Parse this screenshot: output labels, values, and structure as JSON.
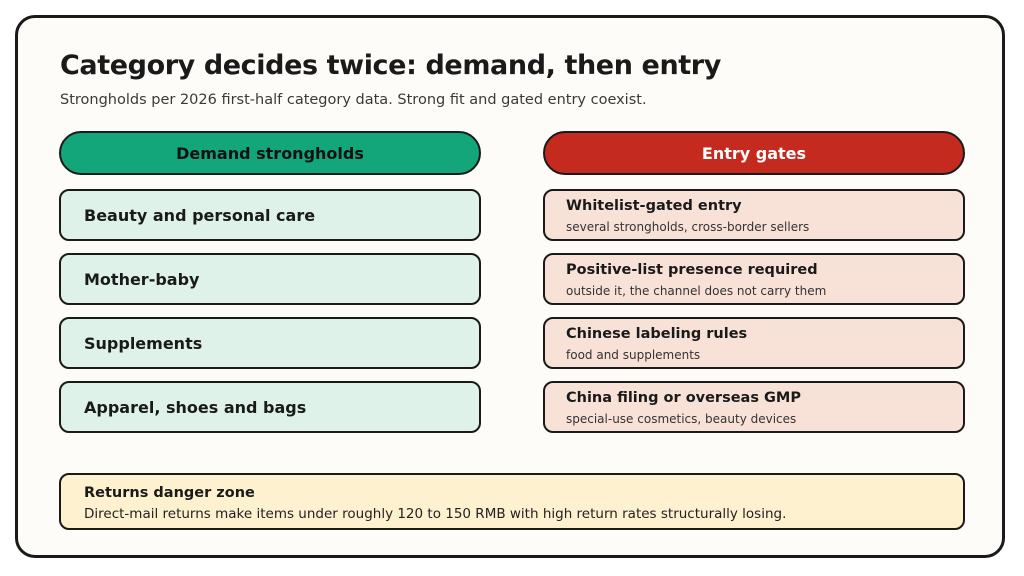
{
  "title": "Category decides twice: demand, then entry",
  "subtitle": "Strongholds per 2026 first-half category data. Strong fit and gated entry coexist.",
  "demand": {
    "header": "Demand strongholds",
    "items": [
      "Beauty and personal care",
      "Mother-baby",
      "Supplements",
      "Apparel, shoes and bags"
    ]
  },
  "gates": {
    "header": "Entry gates",
    "items": [
      {
        "title": "Whitelist-gated entry",
        "note": "several strongholds, cross-border sellers"
      },
      {
        "title": "Positive-list presence required",
        "note": "outside it, the channel does not carry them"
      },
      {
        "title": "Chinese labeling rules",
        "note": "food and supplements"
      },
      {
        "title": "China filing or overseas GMP",
        "note": "special-use cosmetics, beauty devices"
      }
    ]
  },
  "returns": {
    "title": "Returns danger zone",
    "text": "Direct-mail returns make items under roughly 120 to 150 RMB with high return rates structurally losing."
  },
  "colors": {
    "demand_header": "#12a67a",
    "demand_box": "#def2ea",
    "gate_header": "#c42b1e",
    "gate_box": "#f8e2d8",
    "returns_box": "#fdf1cf"
  }
}
